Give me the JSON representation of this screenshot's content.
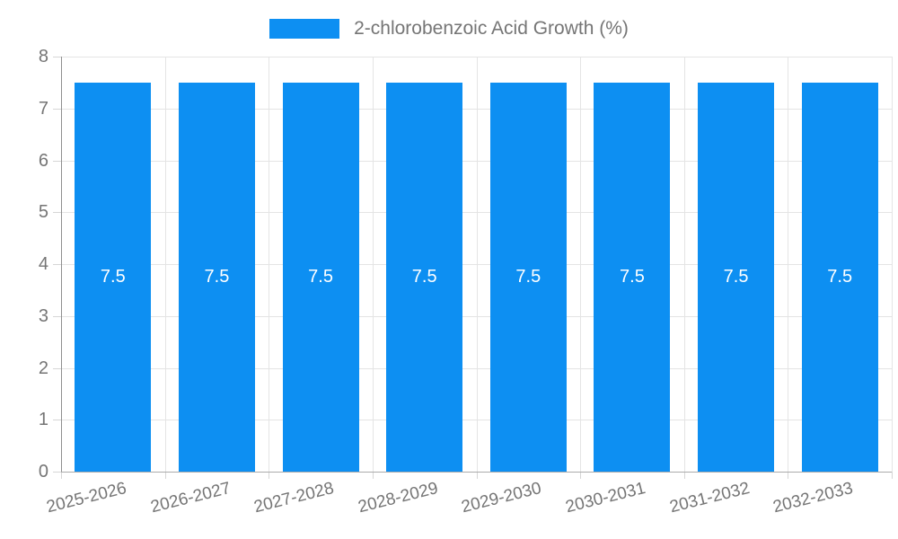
{
  "legend": {
    "label": "2-chlorobenzoic Acid Growth (%)"
  },
  "chart_data": {
    "type": "bar",
    "title": "2-chlorobenzoic Acid Growth (%)",
    "categories": [
      "2025-2026",
      "2026-2027",
      "2027-2028",
      "2028-2029",
      "2029-2030",
      "2030-2031",
      "2031-2032",
      "2032-2033"
    ],
    "values": [
      7.5,
      7.5,
      7.5,
      7.5,
      7.5,
      7.5,
      7.5,
      7.5
    ],
    "bar_value_labels": [
      "7.5",
      "7.5",
      "7.5",
      "7.5",
      "7.5",
      "7.5",
      "7.5",
      "7.5"
    ],
    "xlabel": "",
    "ylabel": "",
    "ylim": [
      0,
      8
    ],
    "yticks": [
      0,
      1,
      2,
      3,
      4,
      5,
      6,
      7,
      8
    ],
    "grid": true,
    "legend_position": "top-center",
    "colors": {
      "bar": "#0d8ff2",
      "grid": "#e4e4e4",
      "axis": "#8f8f8f",
      "tick_label": "#757575",
      "value_label": "#ffffff",
      "background": "#ffffff"
    }
  }
}
